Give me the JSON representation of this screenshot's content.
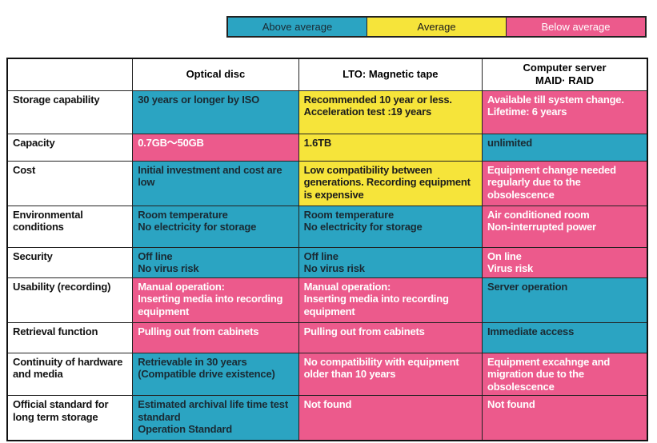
{
  "legend": {
    "above": "Above average",
    "average": "Average",
    "below": "Below average"
  },
  "colors": {
    "above": "#2ba4c2",
    "average": "#f6e43a",
    "below": "#ec5a8c"
  },
  "headers": [
    "",
    "Optical disc",
    "LTO: Magnetic tape",
    "Computer server\nMAID· RAID"
  ],
  "rows": [
    {
      "label": "Storage capability",
      "cells": [
        {
          "rating": "above",
          "text": "30 years or longer by ISO"
        },
        {
          "rating": "average",
          "text": "Recommended 10 year or less.\nAcceleration test :19 years"
        },
        {
          "rating": "below",
          "text": "Available till system change.\nLifetime: 6 years"
        }
      ]
    },
    {
      "label": "Capacity",
      "cells": [
        {
          "rating": "below",
          "text": "0.7GB〜50GB"
        },
        {
          "rating": "average",
          "text": "1.6TB"
        },
        {
          "rating": "above",
          "text": "unlimited"
        }
      ]
    },
    {
      "label": "Cost",
      "cells": [
        {
          "rating": "above",
          "text": "Initial investment and cost are low"
        },
        {
          "rating": "average",
          "text": "Low compatibility between generations. Recording equipment is expensive"
        },
        {
          "rating": "below",
          "text": "Equipment change needed regularly due to the obsolescence"
        }
      ]
    },
    {
      "label": "Environmental conditions",
      "cells": [
        {
          "rating": "above",
          "text": "Room temperature\nNo electricity for storage"
        },
        {
          "rating": "above",
          "text": "Room temperature\nNo electricity for storage"
        },
        {
          "rating": "below",
          "text": "Air conditioned room\nNon-interrupted power"
        }
      ]
    },
    {
      "label": "Security",
      "cells": [
        {
          "rating": "above",
          "text": "Off line\nNo virus risk"
        },
        {
          "rating": "above",
          "text": "Off line\nNo virus risk"
        },
        {
          "rating": "below",
          "text": "On line\nVirus risk"
        }
      ]
    },
    {
      "label": "Usability (recording)",
      "cells": [
        {
          "rating": "below",
          "text": "Manual operation:\nInserting media into recording equipment"
        },
        {
          "rating": "below",
          "text": "Manual operation:\nInserting media into recording equipment"
        },
        {
          "rating": "above",
          "text": "Server operation"
        }
      ]
    },
    {
      "label": "Retrieval function",
      "cells": [
        {
          "rating": "below",
          "text": "Pulling out from cabinets"
        },
        {
          "rating": "below",
          "text": "Pulling out from cabinets"
        },
        {
          "rating": "above",
          "text": "Immediate access"
        }
      ]
    },
    {
      "label": "Continuity of hardware and media",
      "cells": [
        {
          "rating": "above",
          "text": "Retrievable in 30 years (Compatible drive existence)"
        },
        {
          "rating": "below",
          "text": "No compatibility with equipment  older than 10 years"
        },
        {
          "rating": "below",
          "text": "Equipment  excahnge and migration  due to the obsolescence"
        }
      ]
    },
    {
      "label": "Official standard for long term storage",
      "cells": [
        {
          "rating": "above",
          "text": "Estimated archival life time test standard\nOperation Standard"
        },
        {
          "rating": "below",
          "text": "Not found"
        },
        {
          "rating": "below",
          "text": "Not found"
        }
      ]
    }
  ]
}
